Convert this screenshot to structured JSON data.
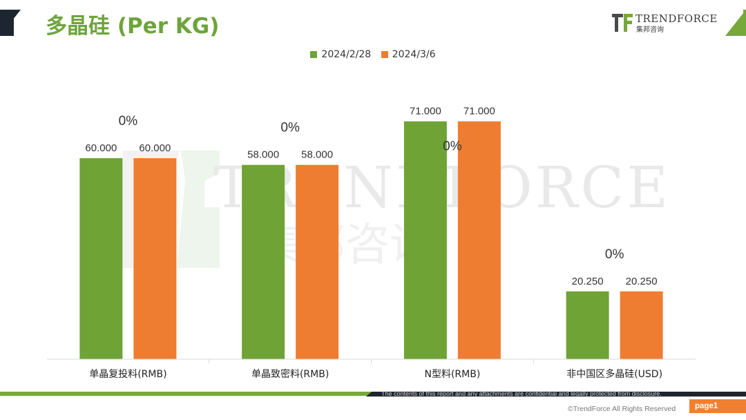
{
  "header": {
    "title": "多晶硅 (Per KG)",
    "logo_text": "TRENDFORCE",
    "logo_sub": "集邦咨询"
  },
  "colors": {
    "series_1": "#6fa335",
    "series_2": "#ef7d31",
    "title": "#6ea43a"
  },
  "chart_data": {
    "type": "bar",
    "title": "多晶硅 (Per KG)",
    "categories": [
      "单晶复投料(RMB)",
      "单晶致密料(RMB)",
      "N型料(RMB)",
      "非中国区多晶硅(USD)"
    ],
    "series": [
      {
        "name": "2024/2/28",
        "values": [
          60.0,
          58.0,
          71.0,
          20.25
        ],
        "labels": [
          "60.000",
          "58.000",
          "71.000",
          "20.250"
        ]
      },
      {
        "name": "2024/3/6",
        "values": [
          60.0,
          58.0,
          71.0,
          20.25
        ],
        "labels": [
          "60.000",
          "58.000",
          "71.000",
          "20.250"
        ]
      }
    ],
    "change_labels": [
      "0%",
      "0%",
      "0%",
      "0%"
    ],
    "ylim": [
      0,
      100
    ],
    "xlabel": "",
    "ylabel": "",
    "grid": false,
    "legend": "top-center"
  },
  "footer": {
    "disclaimer": "The contents of this report and any attachments are confidential and legally protected from disclosure.",
    "copyright": "©TrendForce All Rights Reserved",
    "page": "page1"
  }
}
